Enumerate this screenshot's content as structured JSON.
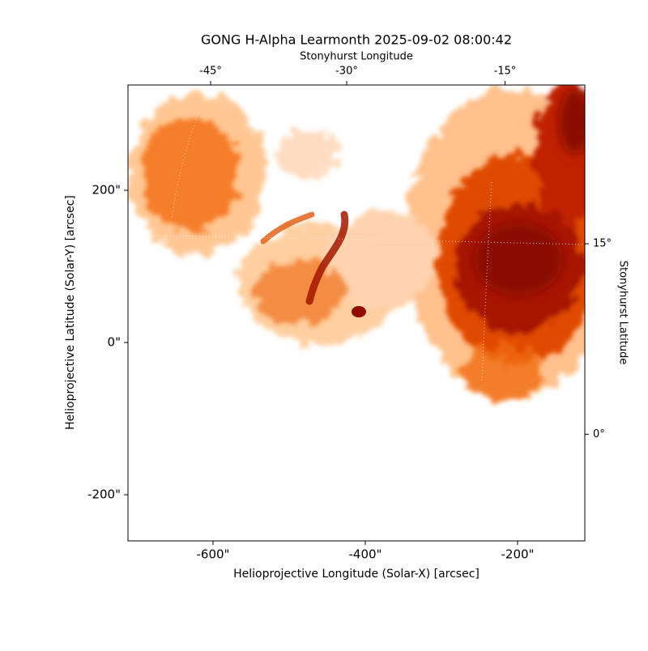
{
  "chart_data": {
    "type": "image",
    "title": "GONG H-Alpha Learmonth 2025-09-02 08:00:42",
    "xlabel": "Helioprojective Longitude (Solar-X) [arcsec]",
    "ylabel": "Helioprojective Latitude (Solar-Y) [arcsec]",
    "x2label": "Stonyhurst Longitude",
    "y2label": "Stonyhurst Latitude",
    "xlim": [
      -711.7,
      -111.7
    ],
    "ylim": [
      -260.6,
      338.3
    ],
    "xticks": [
      {
        "value": -600,
        "label": "-600\""
      },
      {
        "value": -400,
        "label": "-400\""
      },
      {
        "value": -200,
        "label": "-200\""
      }
    ],
    "yticks": [
      {
        "value": -200,
        "label": "-200\""
      },
      {
        "value": 0,
        "label": "0\""
      },
      {
        "value": 200,
        "label": "200\""
      }
    ],
    "x2lim": [
      -56.4,
      -7.9
    ],
    "x2scale": "sin",
    "x2ticks": [
      {
        "value": -45,
        "label": "-45°"
      },
      {
        "value": -30,
        "label": "-30°"
      },
      {
        "value": -15,
        "label": "-15°"
      }
    ],
    "y2lim": [
      -8.4,
      27.5
    ],
    "y2ticks": [
      {
        "value": 0,
        "label": "0°"
      },
      {
        "value": 15,
        "label": "15°"
      }
    ]
  }
}
